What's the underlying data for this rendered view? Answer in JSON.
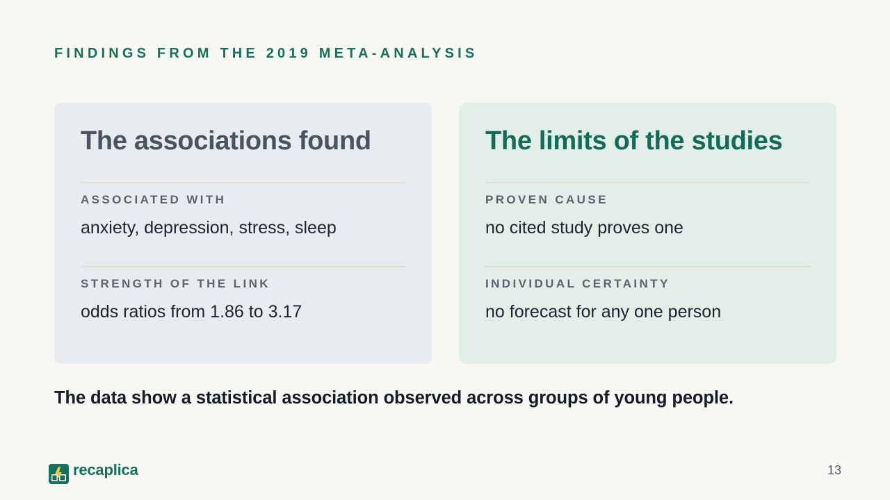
{
  "eyebrow": "FINDINGS FROM THE 2019 META-ANALYSIS",
  "left_card": {
    "title": "The associations found",
    "sections": [
      {
        "label": "ASSOCIATED WITH",
        "value": "anxiety, depression, stress, sleep"
      },
      {
        "label": "STRENGTH OF THE LINK",
        "value": "odds ratios from 1.86 to 3.17"
      }
    ]
  },
  "right_card": {
    "title": "The limits of the studies",
    "sections": [
      {
        "label": "PROVEN CAUSE",
        "value": "no cited study proves one"
      },
      {
        "label": "INDIVIDUAL CERTAINTY",
        "value": "no forecast for any one person"
      }
    ]
  },
  "conclusion": "The data show a statistical association observed across groups of young people.",
  "brand": {
    "name": "recaplica",
    "icon": "recaplica-logo-icon"
  },
  "page_number": "13",
  "colors": {
    "accent": "#16705b",
    "background": "#f8f7f3",
    "left_card_bg": "#e8ecef",
    "right_card_bg": "#e2efe9"
  }
}
